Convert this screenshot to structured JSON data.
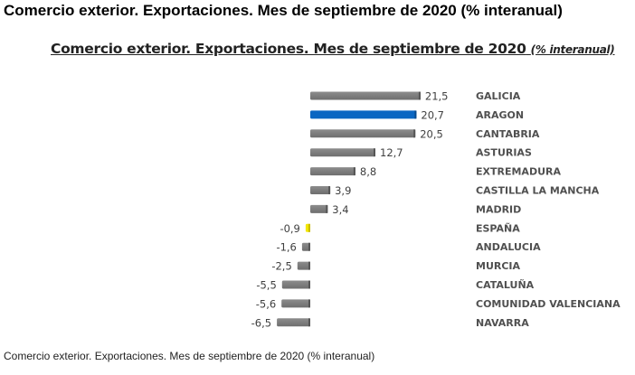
{
  "page_title": "Comercio exterior. Exportaciones. Mes de septiembre de 2020 (% interanual)",
  "caption": "Comercio exterior. Exportaciones. Mes de septiembre de 2020 (% interanual)",
  "chart_data": {
    "type": "bar",
    "orientation": "horizontal",
    "title": "Comercio exterior. Exportaciones. Mes de septiembre de 2020",
    "subtitle": "(% interanual)",
    "xlabel": "",
    "ylabel": "",
    "grid": false,
    "legend": "none",
    "xlim": [
      -7,
      22
    ],
    "categories": [
      "GALICIA",
      "ARAGON",
      "CANTABRIA",
      "ASTURIAS",
      "EXTREMADURA",
      "CASTILLA LA MANCHA",
      "MADRID",
      "ESPAÑA",
      "ANDALUCIA",
      "MURCIA",
      "CATALUÑA",
      "COMUNIDAD VALENCIANA",
      "NAVARRA"
    ],
    "values": [
      21.5,
      20.7,
      20.5,
      12.7,
      8.8,
      3.9,
      3.4,
      -0.9,
      -1.6,
      -2.5,
      -5.5,
      -5.6,
      -6.5
    ],
    "labels": [
      "21,5",
      "20,7",
      "20,5",
      "12,7",
      "8,8",
      "3,9",
      "3,4",
      "-0,9",
      "-1,6",
      "-2,5",
      "-5,5",
      "-5,6",
      "-6,5"
    ],
    "colors": {
      "default": "#7f7f7f",
      "ARAGON": "#0a66c2",
      "ESPAÑA": "#f2e600"
    }
  }
}
